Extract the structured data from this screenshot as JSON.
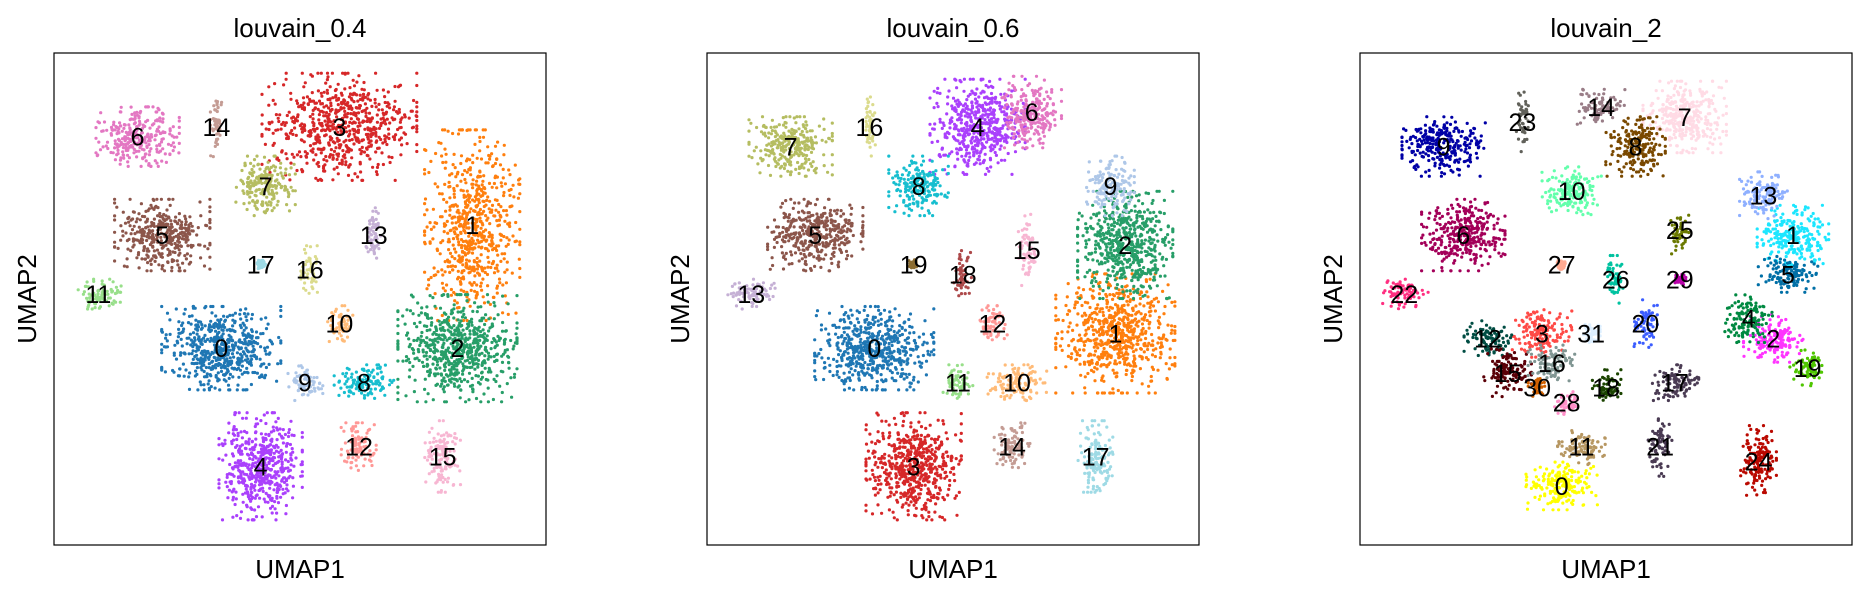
{
  "chart_data": [
    {
      "type": "scatter",
      "title": "louvain_0.4",
      "xlabel": "UMAP1",
      "ylabel": "UMAP2",
      "xlim": [
        0,
        100
      ],
      "ylim": [
        0,
        100
      ],
      "grid": false,
      "legend": "on data",
      "series": [
        {
          "name": "0",
          "color": "#1f77b4",
          "x": 34,
          "y": 60,
          "sx": 10,
          "sy": 7
        },
        {
          "name": "1",
          "color": "#ff7f0e",
          "x": 85,
          "y": 35,
          "sx": 8,
          "sy": 16
        },
        {
          "name": "2",
          "color": "#279e68",
          "x": 82,
          "y": 60,
          "sx": 10,
          "sy": 9
        },
        {
          "name": "3",
          "color": "#d62728",
          "x": 58,
          "y": 15,
          "sx": 13,
          "sy": 9
        },
        {
          "name": "4",
          "color": "#aa40fc",
          "x": 42,
          "y": 84,
          "sx": 7,
          "sy": 9
        },
        {
          "name": "5",
          "color": "#8c564b",
          "x": 22,
          "y": 37,
          "sx": 8,
          "sy": 6
        },
        {
          "name": "6",
          "color": "#e377c2",
          "x": 17,
          "y": 17,
          "sx": 7,
          "sy": 5
        },
        {
          "name": "7",
          "color": "#b5bd61",
          "x": 43,
          "y": 27,
          "sx": 5,
          "sy": 5
        },
        {
          "name": "8",
          "color": "#17becf",
          "x": 63,
          "y": 67,
          "sx": 5,
          "sy": 3
        },
        {
          "name": "9",
          "color": "#aec7e8",
          "x": 51,
          "y": 67,
          "sx": 3,
          "sy": 3
        },
        {
          "name": "10",
          "color": "#ffbb78",
          "x": 58,
          "y": 55,
          "sx": 2.5,
          "sy": 3
        },
        {
          "name": "11",
          "color": "#98df8a",
          "x": 9,
          "y": 49,
          "sx": 4,
          "sy": 2.5
        },
        {
          "name": "12",
          "color": "#ff9896",
          "x": 62,
          "y": 80,
          "sx": 3,
          "sy": 4
        },
        {
          "name": "13",
          "color": "#c5b0d5",
          "x": 65,
          "y": 37,
          "sx": 1.5,
          "sy": 5
        },
        {
          "name": "14",
          "color": "#c49c94",
          "x": 33,
          "y": 15,
          "sx": 1,
          "sy": 5
        },
        {
          "name": "15",
          "color": "#f7b6d2",
          "x": 79,
          "y": 82,
          "sx": 3,
          "sy": 6
        },
        {
          "name": "16",
          "color": "#dbdb8d",
          "x": 52,
          "y": 44,
          "sx": 1.5,
          "sy": 4
        },
        {
          "name": "17",
          "color": "#9edae5",
          "x": 42,
          "y": 43,
          "sx": 0.8,
          "sy": 0.8
        }
      ]
    },
    {
      "type": "scatter",
      "title": "louvain_0.6",
      "xlabel": "UMAP1",
      "ylabel": "UMAP2",
      "xlim": [
        0,
        100
      ],
      "ylim": [
        0,
        100
      ],
      "grid": false,
      "legend": "on data",
      "series": [
        {
          "name": "0",
          "color": "#1f77b4",
          "x": 34,
          "y": 60,
          "sx": 10,
          "sy": 7
        },
        {
          "name": "1",
          "color": "#ff7f0e",
          "x": 83,
          "y": 57,
          "sx": 10,
          "sy": 10
        },
        {
          "name": "2",
          "color": "#279e68",
          "x": 85,
          "y": 39,
          "sx": 8,
          "sy": 9
        },
        {
          "name": "3",
          "color": "#d62728",
          "x": 42,
          "y": 84,
          "sx": 8,
          "sy": 9
        },
        {
          "name": "4",
          "color": "#aa40fc",
          "x": 55,
          "y": 15,
          "sx": 8,
          "sy": 8
        },
        {
          "name": "5",
          "color": "#8c564b",
          "x": 22,
          "y": 37,
          "sx": 8,
          "sy": 6
        },
        {
          "name": "6",
          "color": "#e377c2",
          "x": 66,
          "y": 12,
          "sx": 5,
          "sy": 6
        },
        {
          "name": "7",
          "color": "#b5bd61",
          "x": 17,
          "y": 19,
          "sx": 7,
          "sy": 5
        },
        {
          "name": "8",
          "color": "#17becf",
          "x": 43,
          "y": 27,
          "sx": 5,
          "sy": 5
        },
        {
          "name": "9",
          "color": "#aec7e8",
          "x": 82,
          "y": 27,
          "sx": 4,
          "sy": 5
        },
        {
          "name": "10",
          "color": "#ffbb78",
          "x": 63,
          "y": 67,
          "sx": 5,
          "sy": 3
        },
        {
          "name": "11",
          "color": "#98df8a",
          "x": 51,
          "y": 67,
          "sx": 2.5,
          "sy": 3
        },
        {
          "name": "12",
          "color": "#ff9896",
          "x": 58,
          "y": 55,
          "sx": 2.5,
          "sy": 3
        },
        {
          "name": "13",
          "color": "#c5b0d5",
          "x": 9,
          "y": 49,
          "sx": 4,
          "sy": 2.5
        },
        {
          "name": "14",
          "color": "#c49c94",
          "x": 62,
          "y": 80,
          "sx": 3,
          "sy": 4
        },
        {
          "name": "15",
          "color": "#f7b6d2",
          "x": 65,
          "y": 40,
          "sx": 1.5,
          "sy": 6
        },
        {
          "name": "16",
          "color": "#dbdb8d",
          "x": 33,
          "y": 15,
          "sx": 1,
          "sy": 5
        },
        {
          "name": "17",
          "color": "#9edae5",
          "x": 79,
          "y": 82,
          "sx": 3,
          "sy": 6
        },
        {
          "name": "18",
          "color": "#ad494a",
          "x": 52,
          "y": 45,
          "sx": 1.5,
          "sy": 4
        },
        {
          "name": "19",
          "color": "#8c6d31",
          "x": 42,
          "y": 43,
          "sx": 0.8,
          "sy": 0.8
        }
      ]
    },
    {
      "type": "scatter",
      "title": "louvain_2",
      "xlabel": "UMAP1",
      "ylabel": "UMAP2",
      "xlim": [
        0,
        100
      ],
      "ylim": [
        0,
        100
      ],
      "grid": false,
      "legend": "on data",
      "series": [
        {
          "name": "0",
          "color": "#ffff00",
          "x": 41,
          "y": 88,
          "sx": 6,
          "sy": 4
        },
        {
          "name": "1",
          "color": "#1ce6ff",
          "x": 88,
          "y": 37,
          "sx": 6,
          "sy": 5
        },
        {
          "name": "2",
          "color": "#ff34ff",
          "x": 84,
          "y": 58,
          "sx": 5,
          "sy": 4
        },
        {
          "name": "3",
          "color": "#ff4a46",
          "x": 37,
          "y": 57,
          "sx": 5,
          "sy": 4
        },
        {
          "name": "4",
          "color": "#008941",
          "x": 79,
          "y": 54,
          "sx": 4,
          "sy": 4
        },
        {
          "name": "5",
          "color": "#006fa6",
          "x": 87,
          "y": 45,
          "sx": 5,
          "sy": 3
        },
        {
          "name": "6",
          "color": "#a30059",
          "x": 21,
          "y": 37,
          "sx": 7,
          "sy": 6
        },
        {
          "name": "7",
          "color": "#ffdbe5",
          "x": 66,
          "y": 13,
          "sx": 7,
          "sy": 6
        },
        {
          "name": "8",
          "color": "#7a4900",
          "x": 56,
          "y": 19,
          "sx": 5,
          "sy": 5
        },
        {
          "name": "9",
          "color": "#0000a6",
          "x": 17,
          "y": 19,
          "sx": 7,
          "sy": 5
        },
        {
          "name": "10",
          "color": "#63ffac",
          "x": 43,
          "y": 28,
          "sx": 5,
          "sy": 4
        },
        {
          "name": "11",
          "color": "#b79762",
          "x": 45,
          "y": 80,
          "sx": 4,
          "sy": 3
        },
        {
          "name": "12",
          "color": "#004d43",
          "x": 26,
          "y": 58,
          "sx": 4,
          "sy": 3
        },
        {
          "name": "13",
          "color": "#8fb0ff",
          "x": 82,
          "y": 29,
          "sx": 4,
          "sy": 4
        },
        {
          "name": "14",
          "color": "#997d87",
          "x": 49,
          "y": 11,
          "sx": 4,
          "sy": 3
        },
        {
          "name": "15",
          "color": "#5a0007",
          "x": 30,
          "y": 65,
          "sx": 4,
          "sy": 4
        },
        {
          "name": "16",
          "color": "#809693",
          "x": 39,
          "y": 63,
          "sx": 4,
          "sy": 3
        },
        {
          "name": "17",
          "color": "#4a3b53",
          "x": 64,
          "y": 67,
          "sx": 4,
          "sy": 3
        },
        {
          "name": "18",
          "color": "#1b4400",
          "x": 50,
          "y": 68,
          "sx": 2.5,
          "sy": 3
        },
        {
          "name": "19",
          "color": "#4fc601",
          "x": 91,
          "y": 64,
          "sx": 3,
          "sy": 3
        },
        {
          "name": "20",
          "color": "#3b5dff",
          "x": 58,
          "y": 55,
          "sx": 2,
          "sy": 4
        },
        {
          "name": "21",
          "color": "#4a3b53",
          "x": 61,
          "y": 80,
          "sx": 2,
          "sy": 5
        },
        {
          "name": "22",
          "color": "#ff2f80",
          "x": 9,
          "y": 49,
          "sx": 4,
          "sy": 2.5
        },
        {
          "name": "23",
          "color": "#61615a",
          "x": 33,
          "y": 14,
          "sx": 1,
          "sy": 5
        },
        {
          "name": "24",
          "color": "#ba0900",
          "x": 81,
          "y": 83,
          "sx": 3,
          "sy": 6
        },
        {
          "name": "25",
          "color": "#6b7900",
          "x": 65,
          "y": 36,
          "sx": 1.5,
          "sy": 4
        },
        {
          "name": "26",
          "color": "#00c2a0",
          "x": 52,
          "y": 46,
          "sx": 1.5,
          "sy": 4
        },
        {
          "name": "27",
          "color": "#ffaa92",
          "x": 41,
          "y": 43,
          "sx": 0.8,
          "sy": 0.8
        },
        {
          "name": "28",
          "color": "#ff90c9",
          "x": 42,
          "y": 71,
          "sx": 2.5,
          "sy": 2
        },
        {
          "name": "29",
          "color": "#b903aa",
          "x": 65,
          "y": 46,
          "sx": 1,
          "sy": 1
        },
        {
          "name": "30",
          "color": "#d16100",
          "x": 36,
          "y": 68,
          "sx": 1.5,
          "sy": 1.5
        },
        {
          "name": "31",
          "color": "#ddefff",
          "x": 47,
          "y": 57,
          "sx": 1.5,
          "sy": 1.5
        }
      ]
    }
  ]
}
